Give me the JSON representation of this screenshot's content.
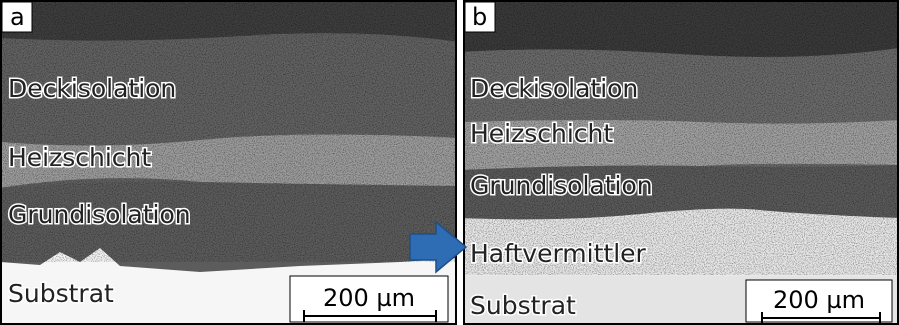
{
  "panels": [
    {
      "letter": "a",
      "layers": [
        "Deckisolation",
        "Heizschicht",
        "Grundisolation",
        "Substrat"
      ],
      "scale": "200 µm"
    },
    {
      "letter": "b",
      "layers": [
        "Deckisolation",
        "Heizschicht",
        "Grundisolation",
        "Haftvermittler",
        "Substrat"
      ],
      "scale": "200 µm"
    }
  ]
}
